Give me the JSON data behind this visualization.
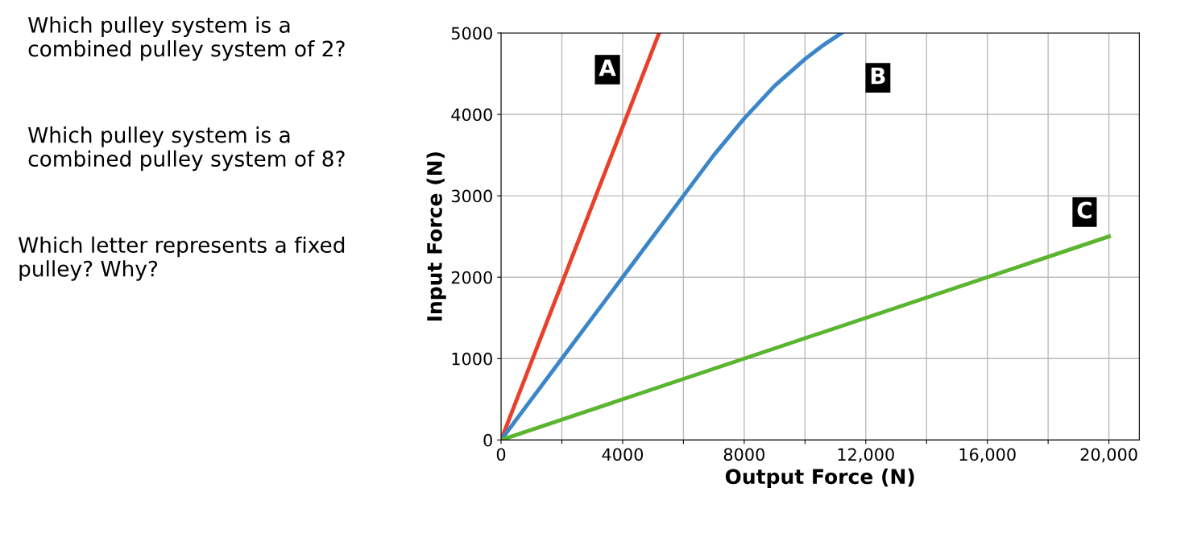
{
  "chart_data": {
    "type": "line",
    "xlabel": "Output Force (N)",
    "ylabel": "Input Force (N)",
    "xlim": [
      0,
      21000
    ],
    "ylim": [
      0,
      5000
    ],
    "xticks": [
      0,
      {
        "value": 2000,
        "label": null
      },
      4000,
      {
        "value": 6000,
        "label": null
      },
      8000,
      {
        "value": 10000,
        "label": null
      },
      {
        "value": 12000,
        "label": "12,000"
      },
      {
        "value": 14000,
        "label": null
      },
      {
        "value": 16000,
        "label": "16,000"
      },
      {
        "value": 18000,
        "label": null
      },
      {
        "value": 20000,
        "label": "20,000"
      }
    ],
    "yticks": [
      0,
      1000,
      2000,
      3000,
      4000,
      5000
    ],
    "grid": true,
    "marker": "none",
    "line_style": "solid",
    "series": [
      {
        "color": "#e8402a",
        "x": [
          0,
          5200
        ],
        "values": [
          0,
          5000
        ]
      },
      {
        "color": "#3a86c8",
        "x": [
          0,
          2000,
          4000,
          6000,
          7000,
          8000,
          9000,
          10000,
          10600,
          11200
        ],
        "values": [
          0,
          1000,
          2000,
          3000,
          3500,
          3950,
          4350,
          4680,
          4850,
          5000
        ]
      },
      {
        "color": "#5cb531",
        "x": [
          0,
          20000
        ],
        "values": [
          0,
          2500
        ]
      }
    ],
    "annotations": [
      {
        "text": "A",
        "x": 3500,
        "y": 4550
      },
      {
        "text": "B",
        "x": 12400,
        "y": 4450
      },
      {
        "text": "C",
        "x": 19200,
        "y": 2800
      },
      "Which pulley system is a combined pulley system of 2?",
      "Which pulley system is a combined pulley system of 8?",
      "Which letter represents a fixed pulley? Why?"
    ]
  }
}
